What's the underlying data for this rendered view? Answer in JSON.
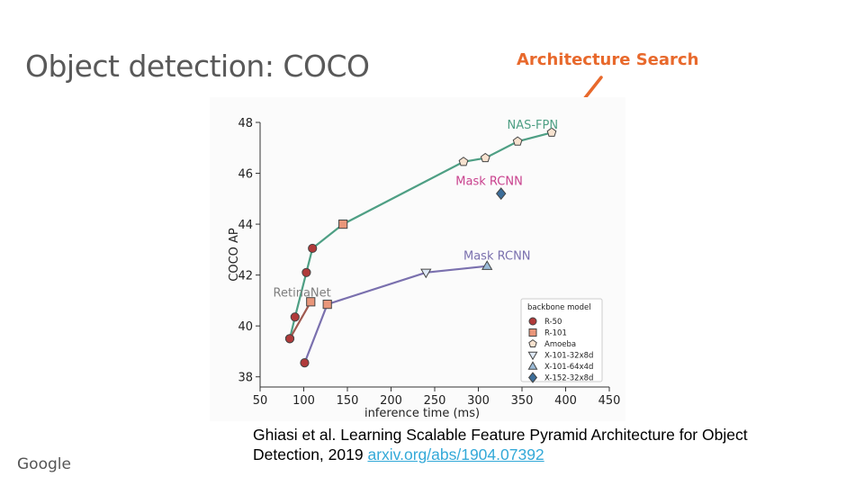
{
  "slide": {
    "title": "Object detection: COCO",
    "callout": "Architecture Search",
    "callout_color": "#e8692c",
    "citation_text": "Ghiasi et al. Learning Scalable Feature Pyramid Architecture for Object Detection, 2019",
    "citation_link": "arxiv.org/abs/1904.07392",
    "link_color": "#33a9d8",
    "brand": "Google"
  },
  "chart_data": {
    "type": "scatter",
    "xlabel": "inference time (ms)",
    "ylabel": "COCO AP",
    "xlim": [
      50,
      450
    ],
    "ylim": [
      37.6,
      48
    ],
    "xticks": [
      50,
      100,
      150,
      200,
      250,
      300,
      350,
      400,
      450
    ],
    "yticks": [
      38,
      40,
      42,
      44,
      46,
      48
    ],
    "grid": false,
    "series": [
      {
        "name": "NAS-FPN",
        "color": "#4e9f84",
        "label_color": "#4e9f84",
        "points": [
          {
            "x": 84,
            "y": 39.5,
            "marker": "R-50"
          },
          {
            "x": 90,
            "y": 40.35,
            "marker": "R-50"
          },
          {
            "x": 103,
            "y": 42.1,
            "marker": "R-50"
          },
          {
            "x": 110,
            "y": 43.05,
            "marker": "R-50"
          },
          {
            "x": 145,
            "y": 44.0,
            "marker": "R-101"
          },
          {
            "x": 283,
            "y": 46.45,
            "marker": "Amoeba"
          },
          {
            "x": 308,
            "y": 46.6,
            "marker": "Amoeba"
          },
          {
            "x": 345,
            "y": 47.25,
            "marker": "Amoeba"
          },
          {
            "x": 384,
            "y": 47.6,
            "marker": "Amoeba"
          }
        ]
      },
      {
        "name": "RetinaNet",
        "color": "#a05a50",
        "label_color": "#7f7f7f",
        "points": [
          {
            "x": 84,
            "y": 39.5,
            "marker": "R-50"
          },
          {
            "x": 108,
            "y": 40.95,
            "marker": "R-101"
          }
        ]
      },
      {
        "name": "Mask RCNN",
        "color": "#7a70ae",
        "label_color": "#7a70ae",
        "points": [
          {
            "x": 101,
            "y": 38.55,
            "marker": "R-50"
          },
          {
            "x": 127,
            "y": 40.85,
            "marker": "R-101"
          },
          {
            "x": 240,
            "y": 42.1,
            "marker": "X-101-32x8d"
          },
          {
            "x": 310,
            "y": 42.35,
            "marker": "X-101-64x4d"
          }
        ]
      },
      {
        "name": "Mask RCNN",
        "color": "#c9428e",
        "label_color": "#c9428e",
        "points": [
          {
            "x": 326,
            "y": 45.2,
            "marker": "X-152-32x8d"
          }
        ]
      }
    ],
    "legend": {
      "title": "backbone model",
      "placement": "bottom-right",
      "entries": [
        {
          "name": "R-50",
          "marker": "circle",
          "fill": "#b03a3a"
        },
        {
          "name": "R-101",
          "marker": "square",
          "fill": "#e9967a"
        },
        {
          "name": "Amoeba",
          "marker": "pentagon",
          "fill": "#f7e2cf"
        },
        {
          "name": "X-101-32x8d",
          "marker": "triangle-down",
          "fill": "#dfe9f6"
        },
        {
          "name": "X-101-64x4d",
          "marker": "triangle-up",
          "fill": "#9bbbd8"
        },
        {
          "name": "X-152-32x8d",
          "marker": "diamond",
          "fill": "#3d6e9a"
        }
      ]
    }
  }
}
